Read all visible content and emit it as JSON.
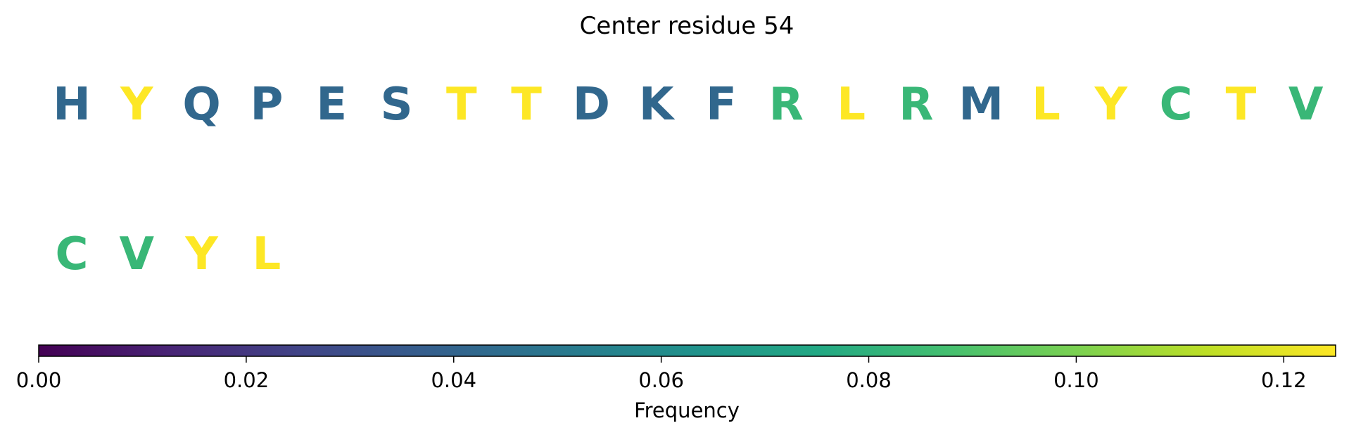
{
  "chart_data": {
    "type": "heatmap",
    "title": "Center residue 54",
    "residues": [
      {
        "letter": "H",
        "frequency": 0.0417
      },
      {
        "letter": "Y",
        "frequency": 0.125
      },
      {
        "letter": "Q",
        "frequency": 0.0417
      },
      {
        "letter": "P",
        "frequency": 0.0417
      },
      {
        "letter": "E",
        "frequency": 0.0417
      },
      {
        "letter": "S",
        "frequency": 0.0417
      },
      {
        "letter": "T",
        "frequency": 0.125
      },
      {
        "letter": "T",
        "frequency": 0.125
      },
      {
        "letter": "D",
        "frequency": 0.0417
      },
      {
        "letter": "K",
        "frequency": 0.0417
      },
      {
        "letter": "F",
        "frequency": 0.0417
      },
      {
        "letter": "R",
        "frequency": 0.0833
      },
      {
        "letter": "L",
        "frequency": 0.125
      },
      {
        "letter": "R",
        "frequency": 0.0833
      },
      {
        "letter": "M",
        "frequency": 0.0417
      },
      {
        "letter": "L",
        "frequency": 0.125
      },
      {
        "letter": "Y",
        "frequency": 0.125
      },
      {
        "letter": "C",
        "frequency": 0.0833
      },
      {
        "letter": "T",
        "frequency": 0.125
      },
      {
        "letter": "V",
        "frequency": 0.0833
      },
      {
        "letter": "C",
        "frequency": 0.0833
      },
      {
        "letter": "V",
        "frequency": 0.0833
      },
      {
        "letter": "Y",
        "frequency": 0.125
      },
      {
        "letter": "L",
        "frequency": 0.125
      }
    ],
    "colorbar": {
      "label": "Frequency",
      "range": [
        0,
        0.125
      ],
      "ticks": [
        0.0,
        0.02,
        0.04,
        0.06,
        0.08,
        0.1,
        0.12
      ],
      "tick_labels": [
        "0.00",
        "0.02",
        "0.04",
        "0.06",
        "0.08",
        "0.10",
        "0.12"
      ],
      "colormap": "viridis"
    }
  }
}
